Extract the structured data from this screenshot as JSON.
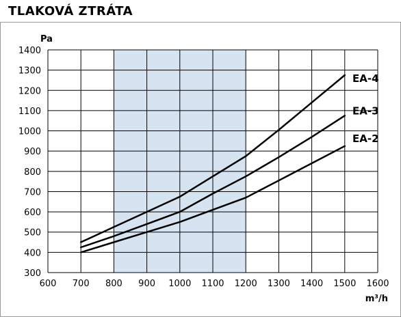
{
  "title": "TLAKOVÁ ZTRÁTA",
  "colors": {
    "band": "#d6e4f2",
    "grid": "#000000",
    "line": "#000000"
  },
  "chart_data": {
    "type": "line",
    "title": "TLAKOVÁ ZTRÁTA",
    "ylabel": "Pa",
    "xlabel": "m³/h",
    "xlim": [
      600,
      1600
    ],
    "ylim": [
      300,
      1400
    ],
    "xticks": [
      600,
      700,
      800,
      900,
      1000,
      1100,
      1200,
      1300,
      1400,
      1500,
      1600
    ],
    "yticks": [
      300,
      400,
      500,
      600,
      700,
      800,
      900,
      1000,
      1100,
      1200,
      1300,
      1400
    ],
    "grid": true,
    "highlight_band": [
      800,
      1200
    ],
    "series": [
      {
        "name": "EA-4",
        "x": [
          700,
          800,
          900,
          1000,
          1100,
          1200,
          1300,
          1400,
          1500
        ],
        "y": [
          450,
          525,
          600,
          675,
          775,
          875,
          1005,
          1140,
          1275
        ]
      },
      {
        "name": "EA-3",
        "x": [
          700,
          800,
          900,
          1000,
          1100,
          1200,
          1300,
          1400,
          1500
        ],
        "y": [
          425,
          480,
          540,
          600,
          690,
          775,
          870,
          970,
          1075
        ]
      },
      {
        "name": "EA-2",
        "x": [
          700,
          800,
          900,
          1000,
          1100,
          1200,
          1300,
          1400,
          1500
        ],
        "y": [
          400,
          450,
          500,
          550,
          610,
          670,
          755,
          840,
          925
        ]
      }
    ]
  }
}
